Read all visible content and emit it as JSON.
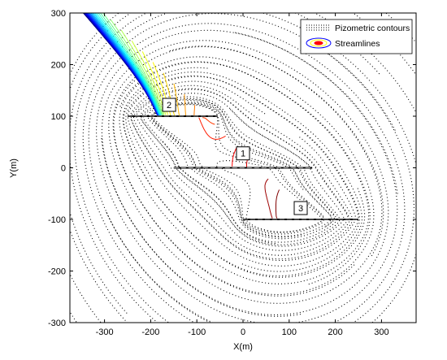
{
  "chart_data": {
    "type": "line",
    "title": "",
    "xlabel": "X(m)",
    "ylabel": "Y(m)",
    "xlim": [
      -375,
      375
    ],
    "ylim": [
      -300,
      300
    ],
    "xticks": [
      -300,
      -200,
      -100,
      0,
      100,
      200,
      300
    ],
    "yticks": [
      -300,
      -200,
      -100,
      0,
      100,
      200,
      300
    ],
    "grid": false,
    "legend": {
      "placement": "top-right",
      "entries": [
        {
          "name": "Pizometric contours",
          "style": "dotted",
          "color": "#000000"
        },
        {
          "name": "Streamlines",
          "style": "solid",
          "color": "#0000ff"
        }
      ]
    },
    "series": [
      {
        "name": "Pizometric contours",
        "style": "dotted",
        "color": "#000000"
      },
      {
        "name": "Streamlines",
        "style": "solid",
        "colormap": "jet"
      }
    ],
    "wells": [
      {
        "label": "2",
        "x": [
          -250,
          -55
        ],
        "y": [
          100,
          100
        ],
        "label_pos": [
          -160,
          122
        ]
      },
      {
        "label": "1",
        "x": [
          -150,
          150
        ],
        "y": [
          0,
          0
        ],
        "label_pos": [
          0,
          28
        ]
      },
      {
        "label": "3",
        "x": [
          0,
          250
        ],
        "y": [
          -100,
          -100
        ],
        "label_pos": [
          125,
          -78
        ]
      }
    ]
  }
}
